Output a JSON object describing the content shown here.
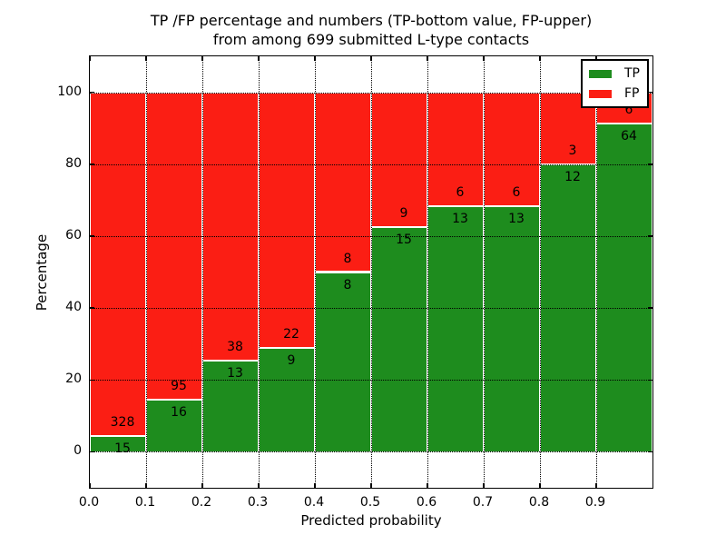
{
  "title": {
    "line1": "TP /FP percentage and numbers (TP-bottom value, FP-upper)",
    "line2": "from among 699 submitted L-type contacts"
  },
  "axes": {
    "x_label": "Predicted probability",
    "y_label": "Percentage",
    "x_ticks": [
      {
        "value": 0.0,
        "label": "0.0"
      },
      {
        "value": 0.1,
        "label": "0.1"
      },
      {
        "value": 0.2,
        "label": "0.2"
      },
      {
        "value": 0.3,
        "label": "0.3"
      },
      {
        "value": 0.4,
        "label": "0.4"
      },
      {
        "value": 0.5,
        "label": "0.5"
      },
      {
        "value": 0.6,
        "label": "0.6"
      },
      {
        "value": 0.7,
        "label": "0.7"
      },
      {
        "value": 0.8,
        "label": "0.8"
      },
      {
        "value": 0.9,
        "label": "0.9"
      }
    ],
    "y_ticks": [
      {
        "value": 0,
        "label": "0"
      },
      {
        "value": 20,
        "label": "20"
      },
      {
        "value": 40,
        "label": "40"
      },
      {
        "value": 60,
        "label": "60"
      },
      {
        "value": 80,
        "label": "80"
      },
      {
        "value": 100,
        "label": "100"
      }
    ],
    "grid_style": "dotted"
  },
  "colors": {
    "tp": "#1e8c1e",
    "fp": "#fb1e14",
    "text": "#000000",
    "background": "#ffffff"
  },
  "legend": {
    "position": "upper-right",
    "entries": [
      {
        "label": "TP",
        "color": "#1e8c1e"
      },
      {
        "label": "FP",
        "color": "#fb1e14"
      }
    ]
  },
  "chart_data": {
    "type": "bar",
    "stacked": true,
    "unit": "percent",
    "title": "TP /FP percentage and numbers (TP-bottom value, FP-upper) from among 699 submitted L-type contacts",
    "xlabel": "Predicted probability",
    "ylabel": "Percentage",
    "xlim": [
      0.0,
      1.0
    ],
    "ylim": [
      -10,
      110
    ],
    "bin_width": 0.1,
    "total_contacts": 699,
    "series_order": [
      "TP-bottom",
      "FP-top"
    ],
    "bins": [
      {
        "x_start": 0.0,
        "x_end": 0.1,
        "tp": 15,
        "fp": 328,
        "tp_pct": 4.37,
        "fp_pct": 95.63
      },
      {
        "x_start": 0.1,
        "x_end": 0.2,
        "tp": 16,
        "fp": 95,
        "tp_pct": 14.41,
        "fp_pct": 85.59
      },
      {
        "x_start": 0.2,
        "x_end": 0.3,
        "tp": 13,
        "fp": 38,
        "tp_pct": 25.49,
        "fp_pct": 74.51
      },
      {
        "x_start": 0.3,
        "x_end": 0.4,
        "tp": 9,
        "fp": 22,
        "tp_pct": 29.03,
        "fp_pct": 70.97
      },
      {
        "x_start": 0.4,
        "x_end": 0.5,
        "tp": 8,
        "fp": 8,
        "tp_pct": 50.0,
        "fp_pct": 50.0
      },
      {
        "x_start": 0.5,
        "x_end": 0.6,
        "tp": 15,
        "fp": 9,
        "tp_pct": 62.5,
        "fp_pct": 37.5
      },
      {
        "x_start": 0.6,
        "x_end": 0.7,
        "tp": 13,
        "fp": 6,
        "tp_pct": 68.42,
        "fp_pct": 31.58
      },
      {
        "x_start": 0.7,
        "x_end": 0.8,
        "tp": 13,
        "fp": 6,
        "tp_pct": 68.42,
        "fp_pct": 31.58
      },
      {
        "x_start": 0.8,
        "x_end": 0.9,
        "tp": 12,
        "fp": 3,
        "tp_pct": 80.0,
        "fp_pct": 20.0
      },
      {
        "x_start": 0.9,
        "x_end": 1.0,
        "tp": 64,
        "fp": 6,
        "tp_pct": 91.43,
        "fp_pct": 8.57
      }
    ]
  }
}
